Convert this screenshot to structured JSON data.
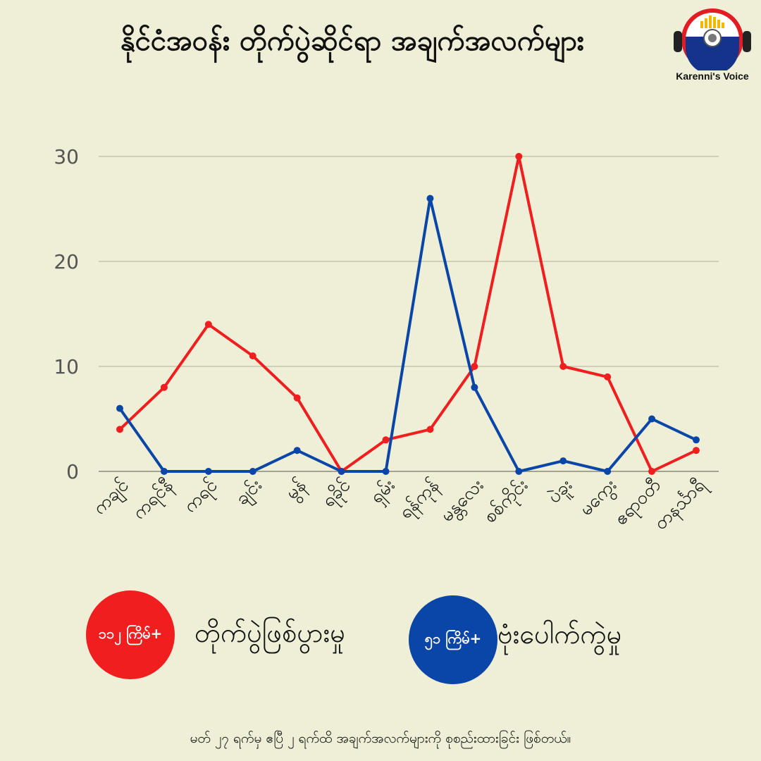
{
  "header": {
    "title": "နိုင်ငံအဝန်း တိုက်ပွဲဆိုင်ရာ အချက်အလက်များ"
  },
  "logo": {
    "text": "Karenni's Voice"
  },
  "legend": [
    {
      "count_label": "၁၁၂ ကြိမ်+",
      "label": "တိုက်ပွဲဖြစ်ပွားမှု",
      "color": "#f01e1e"
    },
    {
      "count_label": "၅၁ ကြိမ်+",
      "label": "ဗုံးပေါက်ကွဲမှု",
      "color": "#0a46a8"
    }
  ],
  "footnote": "မတ် ၂၇ ရက်မှ ဧပြီ ၂ ရက်ထိ အချက်အလက်များကို စုစည်းထားခြင်း ဖြစ်တယ်။",
  "chart_data": {
    "type": "line",
    "categories": [
      "ကချင်",
      "ကရင်နီ",
      "ကရင်",
      "ချင်း",
      "မွန်",
      "ရခိုင်",
      "ရှမ်း",
      "ရန်ကုန်",
      "မန္တလေး",
      "စစ်ကိုင်း",
      "ပဲခူး",
      "မကွေး",
      "ဧရာဝတီ",
      "တနင်္သာရီ"
    ],
    "series": [
      {
        "color": "#f01e1e",
        "values": [
          4,
          8,
          14,
          11,
          7,
          0,
          3,
          4,
          10,
          30,
          10,
          9,
          0,
          2
        ]
      },
      {
        "color": "#0a46a8",
        "values": [
          6,
          0,
          0,
          0,
          2,
          0,
          0,
          26,
          8,
          0,
          1,
          0,
          5,
          3
        ]
      }
    ],
    "yticks": [
      0,
      10,
      20,
      30
    ],
    "ylim": [
      0,
      30
    ],
    "grid": true
  }
}
